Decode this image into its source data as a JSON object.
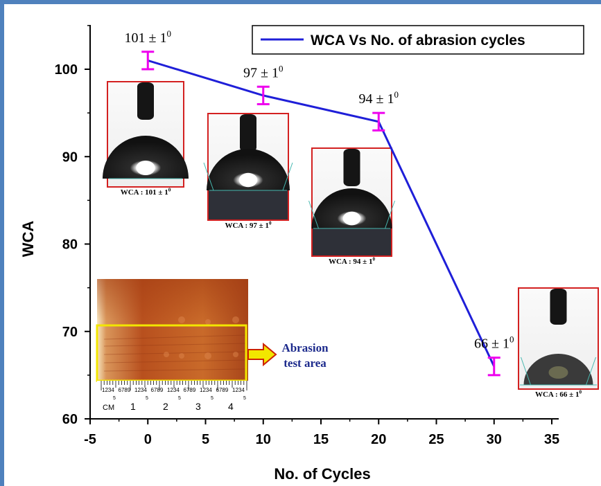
{
  "chart_data": {
    "type": "line",
    "xlabel": "No. of Cycles",
    "ylabel": "WCA",
    "xlim": [
      -5,
      35
    ],
    "ylim": [
      60,
      105
    ],
    "x_ticks": [
      "-5",
      "0",
      "5",
      "10",
      "15",
      "20",
      "25",
      "30",
      "35"
    ],
    "y_ticks": [
      "60",
      "70",
      "80",
      "90",
      "100"
    ],
    "series": [
      {
        "name": "WCA Vs No. of abrasion cycles",
        "color": "#1f1fd8",
        "x": [
          0,
          10,
          20,
          30
        ],
        "y": [
          101,
          97,
          94,
          66
        ],
        "error": [
          1,
          1,
          1,
          1
        ]
      }
    ],
    "error_bar_color": "#ee00ee",
    "point_labels": [
      {
        "base": "101 ± 1",
        "sup": "0"
      },
      {
        "base": "97 ± 1",
        "sup": "0"
      },
      {
        "base": "94 ± 1",
        "sup": "0"
      },
      {
        "base": "66 ± 1",
        "sup": "0"
      }
    ],
    "legend_position": "top-right"
  },
  "insets": {
    "droplet_captions": [
      {
        "base": "WCA : 101 ± 1",
        "sup": "0"
      },
      {
        "base": "WCA : 97 ± 1",
        "sup": "0"
      },
      {
        "base": "WCA : 94 ± 1",
        "sup": "0"
      },
      {
        "base": "WCA : 66 ± 1",
        "sup": "0"
      }
    ],
    "abrasion_label_line1": "Abrasion",
    "abrasion_label_line2": "test area",
    "ruler_top": [
      "1234",
      "6789",
      "1234",
      "6789",
      "1234",
      "6789",
      "1234",
      "6789",
      "1234"
    ],
    "ruler_bottom": [
      "CM",
      "1",
      "2",
      "3",
      "4"
    ],
    "ruler_fives": [
      "5",
      "5",
      "5",
      "5",
      "5"
    ]
  }
}
